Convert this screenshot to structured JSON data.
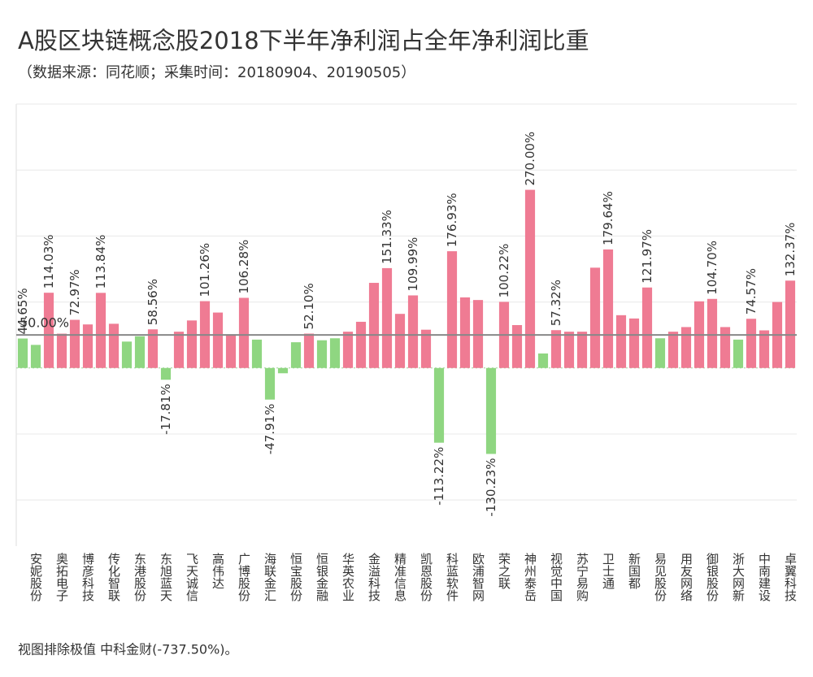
{
  "chart_data": {
    "type": "bar",
    "title": "A股区块链概念股2018下半年净利润占全年净利润比重",
    "subtitle": "（数据来源：同花顺；采集时间：20180904、20190505）",
    "footnote": "视图排除极值 中科金财(-737.50%)。",
    "categories": [
      null,
      "安妮股份",
      null,
      "奥拓电子",
      null,
      "博彦科技",
      null,
      "传化智联",
      null,
      "东港股份",
      null,
      "东旭蓝天",
      null,
      "飞天诚信",
      null,
      "高伟达",
      null,
      "广博股份",
      null,
      "海联金汇",
      null,
      "恒宝股份",
      null,
      "恒银金融",
      null,
      "华英农业",
      null,
      "金溢科技",
      null,
      "精准信息",
      null,
      "凯恩股份",
      null,
      "科蓝软件",
      null,
      "欧浦智网",
      null,
      "荣之联",
      null,
      "神州泰岳",
      null,
      "视觉中国",
      null,
      "苏宁易购",
      null,
      "卫士通",
      null,
      "新国都",
      null,
      "易见股份",
      null,
      "用友网络",
      null,
      "御银股份",
      null,
      "浙大网新",
      null,
      "中南建设",
      null,
      "卓翼科技"
    ],
    "values": [
      44.65,
      35,
      114.03,
      52,
      72.97,
      66,
      113.84,
      67,
      40,
      48,
      58.56,
      -17.81,
      55,
      72,
      101.26,
      84,
      51,
      106.28,
      43,
      -47.91,
      -8,
      39,
      52.1,
      42,
      45,
      55,
      70,
      129,
      151.33,
      82,
      109.99,
      58,
      -113.22,
      176.93,
      107,
      103,
      -130.23,
      100.22,
      65,
      270,
      22,
      57.32,
      55,
      55,
      152,
      179.64,
      80,
      75,
      121.97,
      45,
      55,
      62,
      101,
      104.7,
      62,
      43,
      74.57,
      57,
      100,
      132.37
    ],
    "value_labels": [
      "44.65%",
      null,
      "114.03%",
      null,
      "72.97%",
      null,
      "113.84%",
      null,
      null,
      null,
      "58.56%",
      "-17.81%",
      null,
      null,
      "101.26%",
      null,
      null,
      "106.28%",
      null,
      "-47.91%",
      null,
      null,
      "52.10%",
      null,
      null,
      null,
      null,
      null,
      "151.33%",
      null,
      "109.99%",
      null,
      "-113.22%",
      "176.93%",
      null,
      null,
      "-130.23%",
      "100.22%",
      null,
      "270.00%",
      null,
      "57.32%",
      null,
      null,
      null,
      "179.64%",
      null,
      null,
      "121.97%",
      null,
      null,
      null,
      null,
      "104.70%",
      null,
      null,
      "74.57%",
      null,
      null,
      "132.37%"
    ],
    "color_above": "#ef7b93",
    "color_below": "#8fd681",
    "reference_line": {
      "value": 50,
      "label": "50.00%"
    },
    "ylim": [
      -270,
      400
    ],
    "yticks": [
      -200,
      -100,
      0,
      100,
      200,
      300,
      400
    ],
    "grid": true
  }
}
